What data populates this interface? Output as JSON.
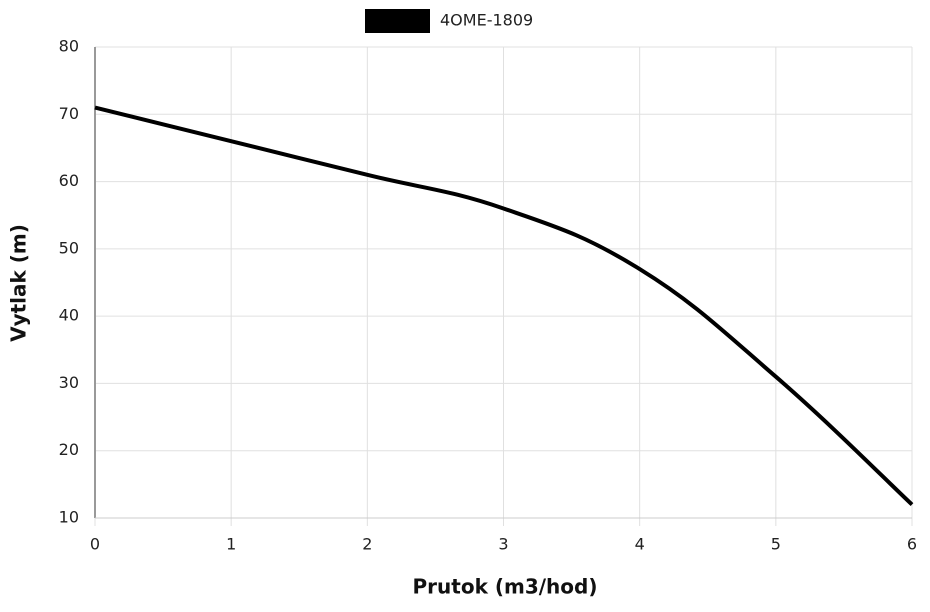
{
  "chart_data": {
    "type": "line",
    "x_label": "Prutok (m3/hod)",
    "y_label": "Vytlak (m)",
    "x": [
      0,
      1,
      2,
      3,
      4,
      5,
      6
    ],
    "series": [
      {
        "name": "4OME-1809",
        "color": "#000000",
        "values": [
          71,
          66,
          61,
          56,
          47,
          31,
          12
        ]
      }
    ],
    "xlim": [
      0,
      6
    ],
    "xticks": [
      0,
      1,
      2,
      3,
      4,
      5,
      6
    ],
    "ylim": [
      10,
      80
    ],
    "yticks": [
      10,
      20,
      30,
      40,
      50,
      60,
      70,
      80
    ],
    "grid": true,
    "legend": "top"
  }
}
